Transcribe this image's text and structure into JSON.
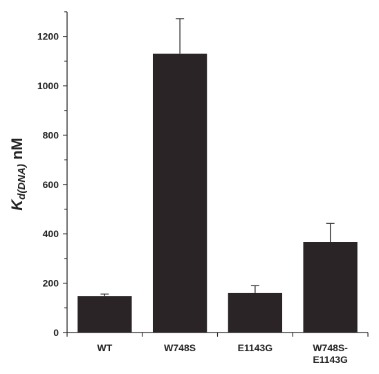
{
  "chart_data": {
    "type": "bar",
    "categories": [
      "WT",
      "W748S",
      "E1143G",
      "W748S-\nE1143G"
    ],
    "values": [
      148,
      1130,
      160,
      367
    ],
    "errors": [
      8,
      142,
      30,
      75
    ],
    "ylabel_symbol": "K",
    "ylabel_subscript": "d(DNA)",
    "ylabel_unit": " nM",
    "ylim": [
      0,
      1300
    ],
    "yticks": [
      0,
      200,
      400,
      600,
      800,
      1000,
      1200
    ],
    "grid": false,
    "bar_color": "#2a2426"
  }
}
